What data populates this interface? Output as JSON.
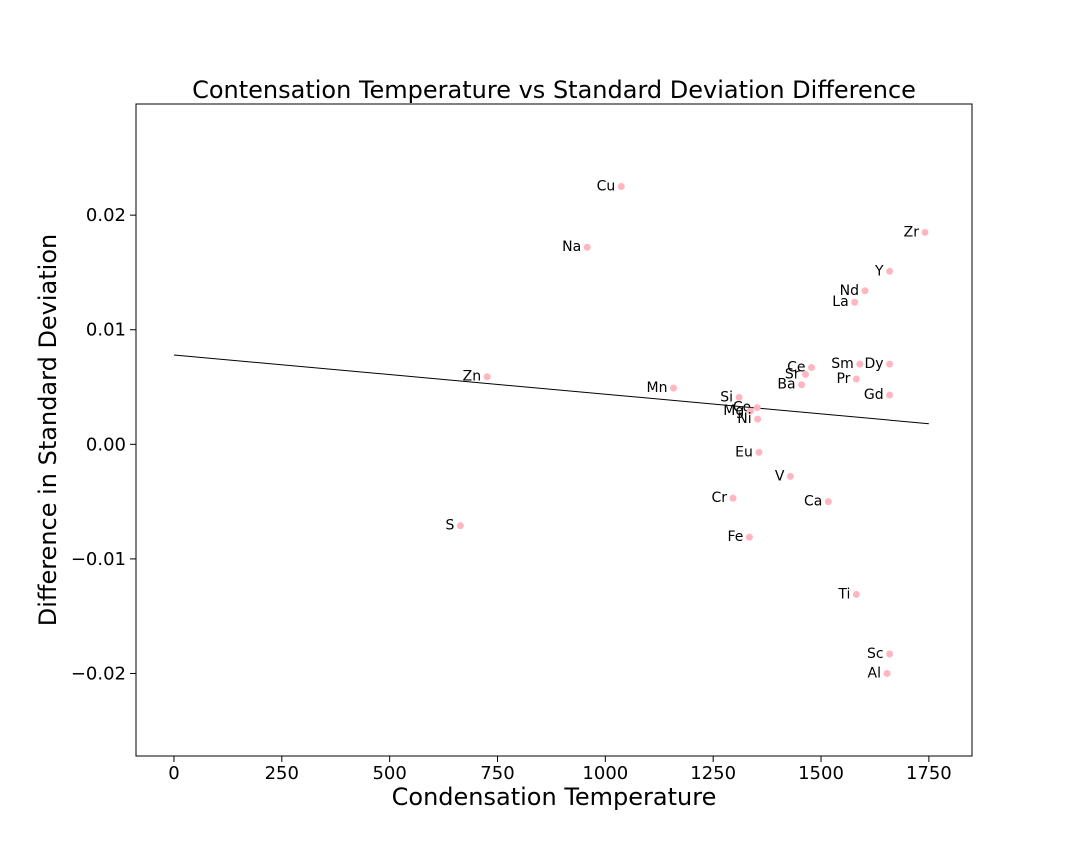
{
  "chart_data": {
    "type": "scatter",
    "title": "Contensation Temperature vs Standard Deviation Difference",
    "xlabel": "Condensation Temperature",
    "ylabel": "Difference in Standard Deviation",
    "xlim": [
      -88,
      1850
    ],
    "ylim": [
      -0.0272,
      0.0297
    ],
    "xticks": [
      0,
      250,
      500,
      750,
      1000,
      1250,
      1500,
      1750
    ],
    "yticks": [
      -0.02,
      -0.01,
      0.0,
      0.01,
      0.02
    ],
    "xtick_labels": [
      "0",
      "250",
      "500",
      "750",
      "1000",
      "1250",
      "1500",
      "1750"
    ],
    "ytick_labels": [
      "−0.02",
      "−0.01",
      "0.00",
      "0.01",
      "0.02"
    ],
    "grid": false,
    "point_color": "#ffb6c1",
    "line_color": "#000000",
    "trend_line": {
      "x": [
        0,
        1750
      ],
      "y": [
        0.0078,
        0.0018
      ]
    },
    "points": [
      {
        "label": "Cu",
        "x": 1037,
        "y": 0.0225
      },
      {
        "label": "Zr",
        "x": 1741,
        "y": 0.0185
      },
      {
        "label": "Na",
        "x": 958,
        "y": 0.0172
      },
      {
        "label": "Y",
        "x": 1659,
        "y": 0.0151
      },
      {
        "label": "Nd",
        "x": 1602,
        "y": 0.0134
      },
      {
        "label": "La",
        "x": 1578,
        "y": 0.0124
      },
      {
        "label": "Sm",
        "x": 1590,
        "y": 0.007
      },
      {
        "label": "Dy",
        "x": 1659,
        "y": 0.007
      },
      {
        "label": "Ce",
        "x": 1478,
        "y": 0.0067
      },
      {
        "label": "Sr",
        "x": 1464,
        "y": 0.0061
      },
      {
        "label": "Zn",
        "x": 726,
        "y": 0.0059
      },
      {
        "label": "Pr",
        "x": 1582,
        "y": 0.0057
      },
      {
        "label": "Ba",
        "x": 1455,
        "y": 0.0052
      },
      {
        "label": "Mn",
        "x": 1158,
        "y": 0.0049
      },
      {
        "label": "Gd",
        "x": 1659,
        "y": 0.0043
      },
      {
        "label": "Si",
        "x": 1310,
        "y": 0.0041
      },
      {
        "label": "Co",
        "x": 1352,
        "y": 0.0032
      },
      {
        "label": "Mg",
        "x": 1336,
        "y": 0.0029
      },
      {
        "label": "Ni",
        "x": 1353,
        "y": 0.0022
      },
      {
        "label": "Eu",
        "x": 1356,
        "y": -0.0007
      },
      {
        "label": "V",
        "x": 1429,
        "y": -0.0028
      },
      {
        "label": "Cr",
        "x": 1296,
        "y": -0.0047
      },
      {
        "label": "Ca",
        "x": 1517,
        "y": -0.005
      },
      {
        "label": "S",
        "x": 664,
        "y": -0.0071
      },
      {
        "label": "Fe",
        "x": 1334,
        "y": -0.0081
      },
      {
        "label": "Ti",
        "x": 1582,
        "y": -0.0131
      },
      {
        "label": "Sc",
        "x": 1659,
        "y": -0.0183
      },
      {
        "label": "Al",
        "x": 1653,
        "y": -0.02
      }
    ]
  }
}
